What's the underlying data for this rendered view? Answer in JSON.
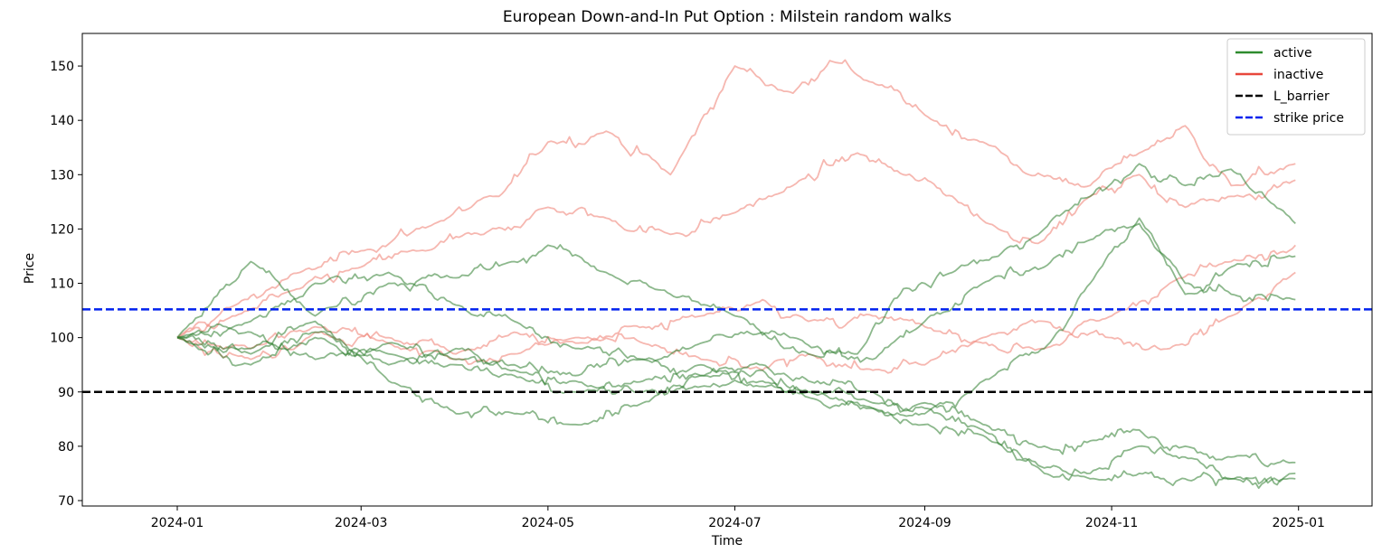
{
  "chart_data": {
    "type": "line",
    "title": "European Down-and-In Put Option : Milstein random walks",
    "xlabel": "Time",
    "ylabel": "Price",
    "xlim": [
      "2023-12-01",
      "2025-01-25"
    ],
    "ylim": [
      69,
      156
    ],
    "x_ticks": [
      "2024-01",
      "2024-03",
      "2024-05",
      "2024-07",
      "2024-09",
      "2024-11",
      "2025-01"
    ],
    "y_ticks": [
      70,
      80,
      90,
      100,
      110,
      120,
      130,
      140,
      150
    ],
    "grid": false,
    "legend_position": "top-right",
    "legend": [
      {
        "label": "active",
        "color": "#2e8b2e",
        "style": "solid"
      },
      {
        "label": "inactive",
        "color": "#e8473c",
        "style": "solid"
      },
      {
        "label": "L_barrier",
        "color": "#000000",
        "style": "dashed"
      },
      {
        "label": "strike price",
        "color": "#0022ee",
        "style": "dashed"
      }
    ],
    "hlines": [
      {
        "name": "L_barrier",
        "value": 90,
        "color": "#000000"
      },
      {
        "name": "strike price",
        "value": 105.2,
        "color": "#0022ee"
      }
    ],
    "colors": {
      "active": "#2e7d2e",
      "inactive": "#f08a80"
    },
    "series": [
      {
        "group": "inactive",
        "x": [
          "2024-01-01",
          "2024-01-20",
          "2024-02-10",
          "2024-03-01",
          "2024-03-25",
          "2024-04-15",
          "2024-05-01",
          "2024-05-20",
          "2024-06-10",
          "2024-07-01",
          "2024-07-20",
          "2024-08-01",
          "2024-08-15",
          "2024-09-01",
          "2024-09-20",
          "2024-10-05",
          "2024-10-25",
          "2024-11-10",
          "2024-11-25",
          "2024-12-10",
          "2024-12-31"
        ],
        "values": [
          100,
          106,
          112,
          116,
          121,
          126,
          136,
          138,
          130,
          150,
          145,
          151,
          147,
          141,
          136,
          130,
          128,
          134,
          139,
          128,
          132
        ]
      },
      {
        "group": "inactive",
        "x": [
          "2024-01-01",
          "2024-01-20",
          "2024-02-10",
          "2024-03-01",
          "2024-03-20",
          "2024-04-10",
          "2024-05-01",
          "2024-05-20",
          "2024-06-10",
          "2024-07-01",
          "2024-07-20",
          "2024-08-10",
          "2024-08-25",
          "2024-09-10",
          "2024-09-25",
          "2024-10-10",
          "2024-10-25",
          "2024-11-10",
          "2024-11-25",
          "2024-12-10",
          "2024-12-31"
        ],
        "values": [
          100,
          104,
          109,
          113,
          116,
          119,
          124,
          122,
          119,
          123,
          128,
          134,
          130,
          126,
          120,
          118,
          126,
          130,
          124,
          126,
          129
        ]
      },
      {
        "group": "inactive",
        "x": [
          "2024-01-01",
          "2024-01-25",
          "2024-02-15",
          "2024-03-10",
          "2024-04-01",
          "2024-04-20",
          "2024-05-10",
          "2024-06-01",
          "2024-06-20",
          "2024-07-10",
          "2024-07-25",
          "2024-08-15",
          "2024-09-01",
          "2024-09-20",
          "2024-10-10",
          "2024-11-01",
          "2024-11-20",
          "2024-12-10",
          "2024-12-31"
        ],
        "values": [
          100,
          98,
          102,
          100,
          97,
          101,
          99,
          102,
          104,
          107,
          103,
          104,
          102,
          99,
          98,
          104,
          110,
          114,
          117
        ]
      },
      {
        "group": "inactive",
        "x": [
          "2024-01-01",
          "2024-01-25",
          "2024-02-15",
          "2024-03-10",
          "2024-04-01",
          "2024-04-20",
          "2024-05-10",
          "2024-06-01",
          "2024-06-20",
          "2024-07-10",
          "2024-07-25",
          "2024-08-15",
          "2024-09-01",
          "2024-09-20",
          "2024-10-10",
          "2024-11-01",
          "2024-11-20",
          "2024-12-10",
          "2024-12-31"
        ],
        "values": [
          100,
          96,
          101,
          99,
          96,
          97,
          100,
          99,
          96,
          94,
          97,
          94,
          95,
          100,
          103,
          100,
          98,
          104,
          112
        ]
      },
      {
        "group": "active",
        "x": [
          "2024-01-01",
          "2024-01-25",
          "2024-02-15",
          "2024-03-10",
          "2024-04-01",
          "2024-04-20",
          "2024-05-01",
          "2024-05-20",
          "2024-06-10",
          "2024-07-01",
          "2024-07-20",
          "2024-08-10",
          "2024-08-25",
          "2024-09-10",
          "2024-09-25",
          "2024-10-10",
          "2024-10-25",
          "2024-11-10",
          "2024-11-25",
          "2024-12-10",
          "2024-12-31"
        ],
        "values": [
          100,
          114,
          104,
          110,
          111,
          114,
          117,
          112,
          108,
          104,
          100,
          97,
          109,
          112,
          115,
          120,
          126,
          132,
          128,
          131,
          121
        ]
      },
      {
        "group": "active",
        "x": [
          "2024-01-01",
          "2024-01-25",
          "2024-02-15",
          "2024-03-10",
          "2024-04-01",
          "2024-04-20",
          "2024-05-10",
          "2024-06-01",
          "2024-06-20",
          "2024-07-10",
          "2024-07-25",
          "2024-08-15",
          "2024-09-01",
          "2024-09-20",
          "2024-10-10",
          "2024-10-25",
          "2024-11-10",
          "2024-11-25",
          "2024-12-10",
          "2024-12-31"
        ],
        "values": [
          100,
          103,
          110,
          112,
          106,
          103,
          98,
          96,
          99,
          101,
          97,
          96,
          103,
          110,
          113,
          118,
          121,
          110,
          108,
          107
        ]
      },
      {
        "group": "active",
        "x": [
          "2024-01-01",
          "2024-01-25",
          "2024-02-15",
          "2024-03-10",
          "2024-04-01",
          "2024-04-20",
          "2024-05-10",
          "2024-06-01",
          "2024-06-20",
          "2024-07-10",
          "2024-07-25",
          "2024-08-15",
          "2024-09-01",
          "2024-09-20",
          "2024-10-10",
          "2024-10-25",
          "2024-11-10",
          "2024-11-25",
          "2024-12-10",
          "2024-12-31"
        ],
        "values": [
          100,
          95,
          100,
          95,
          98,
          95,
          93,
          96,
          93,
          94,
          90,
          87,
          86,
          92,
          98,
          110,
          122,
          108,
          113,
          115
        ]
      },
      {
        "group": "active",
        "x": [
          "2024-01-01",
          "2024-01-25",
          "2024-02-15",
          "2024-03-10",
          "2024-04-01",
          "2024-04-20",
          "2024-05-10",
          "2024-06-01",
          "2024-06-20",
          "2024-07-10",
          "2024-07-25",
          "2024-08-15",
          "2024-09-01",
          "2024-09-20",
          "2024-10-10",
          "2024-10-25",
          "2024-11-10",
          "2024-11-25",
          "2024-12-10",
          "2024-12-31"
        ],
        "values": [
          100,
          97,
          101,
          97,
          95,
          93,
          90,
          92,
          95,
          91,
          90,
          88,
          88,
          84,
          80,
          81,
          83,
          80,
          78,
          77
        ]
      },
      {
        "group": "active",
        "x": [
          "2024-01-01",
          "2024-01-25",
          "2024-02-15",
          "2024-03-10",
          "2024-04-01",
          "2024-04-20",
          "2024-05-10",
          "2024-06-01",
          "2024-06-20",
          "2024-07-10",
          "2024-07-25",
          "2024-08-15",
          "2024-09-01",
          "2024-09-20",
          "2024-10-10",
          "2024-10-25",
          "2024-11-10",
          "2024-11-25",
          "2024-12-10",
          "2024-12-31"
        ],
        "values": [
          100,
          98,
          103,
          92,
          86,
          86,
          84,
          88,
          91,
          92,
          89,
          87,
          84,
          82,
          76,
          75,
          80,
          78,
          74,
          75
        ]
      },
      {
        "group": "active",
        "x": [
          "2024-01-01",
          "2024-01-25",
          "2024-02-15",
          "2024-03-10",
          "2024-04-01",
          "2024-04-20",
          "2024-05-10",
          "2024-06-01",
          "2024-06-20",
          "2024-07-10",
          "2024-07-25",
          "2024-08-15",
          "2024-09-01",
          "2024-09-20",
          "2024-10-10",
          "2024-10-25",
          "2024-11-10",
          "2024-11-25",
          "2024-12-10",
          "2024-12-31"
        ],
        "values": [
          100,
          101,
          96,
          99,
          96,
          94,
          92,
          90,
          93,
          95,
          92,
          90,
          87,
          83,
          75,
          74,
          75,
          74,
          74,
          74
        ]
      }
    ]
  }
}
